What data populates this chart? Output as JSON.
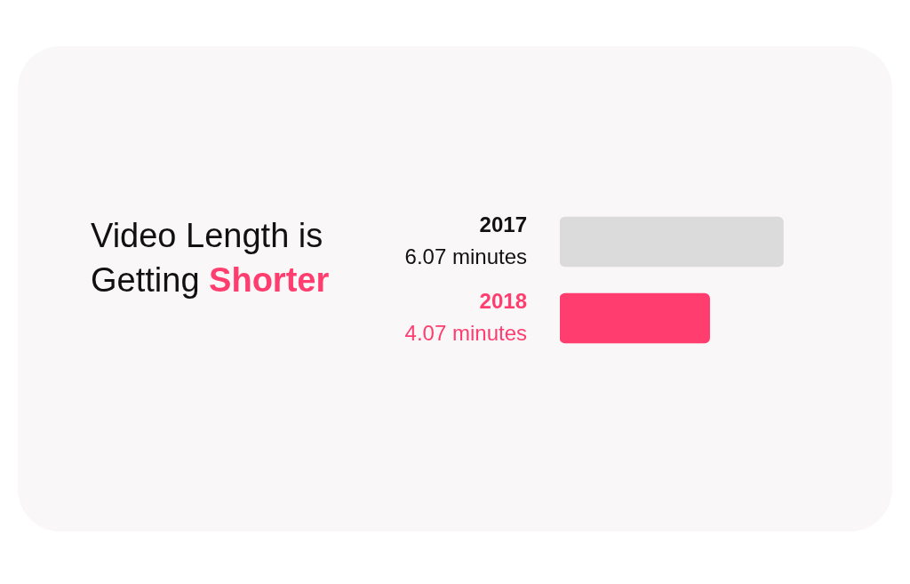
{
  "chart_data": {
    "type": "bar",
    "orientation": "horizontal",
    "title": "Video Length is Getting Shorter",
    "categories": [
      "2017",
      "2018"
    ],
    "values": [
      6.07,
      4.07
    ],
    "colors": [
      "#dcdbdc",
      "#ff3d6e"
    ],
    "value_labels": [
      "6.07 minutes",
      "4.07 minutes"
    ]
  }
}
